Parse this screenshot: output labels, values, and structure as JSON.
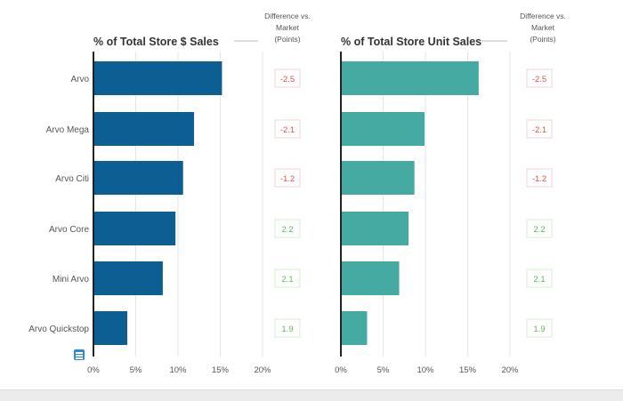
{
  "chart_data": [
    {
      "type": "bar",
      "orientation": "horizontal",
      "title": "% of Total Store $ Sales",
      "categories": [
        "Arvo",
        "Arvo Mega",
        "Arvo Citi",
        "Arvo Core",
        "Mini Arvo",
        "Arvo Quickstop"
      ],
      "values": [
        15.2,
        11.9,
        10.6,
        9.7,
        8.2,
        4.0
      ],
      "xlim": [
        0,
        20
      ],
      "x_ticks": [
        "0%",
        "5%",
        "10%",
        "15%",
        "20%"
      ],
      "grid": true,
      "bar_color": "#0d5f93"
    },
    {
      "type": "bar",
      "orientation": "horizontal",
      "title": "% of Total Store Unit Sales",
      "categories": [
        "Arvo",
        "Arvo Mega",
        "Arvo Citi",
        "Arvo Core",
        "Mini Arvo",
        "Arvo Quickstop"
      ],
      "values": [
        16.3,
        9.9,
        8.7,
        8.0,
        6.9,
        3.1
      ],
      "xlim": [
        0,
        20
      ],
      "x_ticks": [
        "0%",
        "5%",
        "10%",
        "15%",
        "20%"
      ],
      "grid": true,
      "bar_color": "#44aaa2"
    }
  ],
  "difference_header": [
    "Difference vs.",
    "Market",
    "(Points)"
  ],
  "difference_values": [
    [
      "-2.5",
      "-2.1",
      "-1.2",
      "2.2",
      "2.1",
      "1.9"
    ],
    [
      "-2.5",
      "-2.1",
      "-1.2",
      "2.2",
      "2.1",
      "1.9"
    ]
  ],
  "colors": {
    "negative": "#d9534f",
    "positive": "#5cb85c",
    "negative_border": "#f2d4d4",
    "positive_border": "#d6ecd2",
    "grid": "#e4e4e4",
    "axis": "#222222"
  },
  "icons": {
    "menu": "hamburger-menu-icon"
  }
}
